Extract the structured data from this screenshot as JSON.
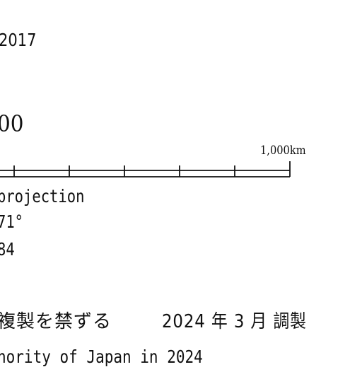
{
  "legend": {
    "edition_year": "2017",
    "scale_denominator": "00",
    "scale_bar": {
      "end_label": "1,000km",
      "divisions": 5
    },
    "projection_lines": [
      "projection",
      "71°",
      "84"
    ],
    "notice_jp": "複製を禁ずる",
    "issued_jp": "2024 年 3 月  調製",
    "authority_line": "hority of Japan in 2024"
  }
}
